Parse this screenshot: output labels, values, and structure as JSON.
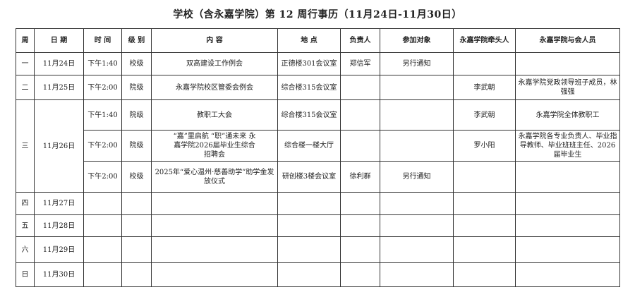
{
  "title": "学校（含永嘉学院）第 12 周行事历（11月24日-11月30日）",
  "headers": [
    "周",
    "日 期",
    "时 间",
    "级 别",
    "内 容",
    "地 点",
    "负责人",
    "参加对象",
    "永嘉学院牵头人",
    "永嘉学院与会人员"
  ],
  "days": [
    {
      "week": "一",
      "date": "11月24日",
      "events": [
        {
          "time": "下午1:40",
          "level": "校级",
          "content": "双高建设工作例会",
          "place": "正德楼301会议室",
          "owner": "郑信军",
          "participants": "另行通知",
          "lead": "",
          "attendees": ""
        }
      ]
    },
    {
      "week": "二",
      "date": "11月25日",
      "events": [
        {
          "time": "下午2:00",
          "level": "院级",
          "content": "永嘉学院校区管委会例会",
          "place": "综合楼315会议室",
          "owner": "",
          "participants": "",
          "lead": "李武朝",
          "attendees": "永嘉学院党政领导班子成员，林强强"
        }
      ]
    },
    {
      "week": "三",
      "date": "11月26日",
      "events": [
        {
          "time": "下午1:40",
          "level": "院级",
          "content": "教职工大会",
          "place": "综合楼315会议室",
          "owner": "",
          "participants": "",
          "lead": "李武朝",
          "attendees": "永嘉学院全体教职工"
        },
        {
          "time": "下午2:00",
          "level": "院级",
          "content": "“嘉”里启航 “职”通未来 永嘉学院2026届毕业生综合招聘会",
          "place": "综合楼一楼大厅",
          "owner": "",
          "participants": "",
          "lead": "罗小阳",
          "attendees": "永嘉学院各专业负责人、毕业指导教师、毕业班班主任、2026届毕业生"
        },
        {
          "time": "下午2:00",
          "level": "校级",
          "content": "2025年“爱心温州·慈善助学”助学金发放仪式",
          "place": "研创楼3楼会议室",
          "owner": "徐利群",
          "participants": "另行通知",
          "lead": "",
          "attendees": ""
        }
      ]
    },
    {
      "week": "四",
      "date": "11月27日"
    },
    {
      "week": "五",
      "date": "11月28日"
    },
    {
      "week": "六",
      "date": "11月29日"
    },
    {
      "week": "日",
      "date": "11月30日"
    }
  ]
}
